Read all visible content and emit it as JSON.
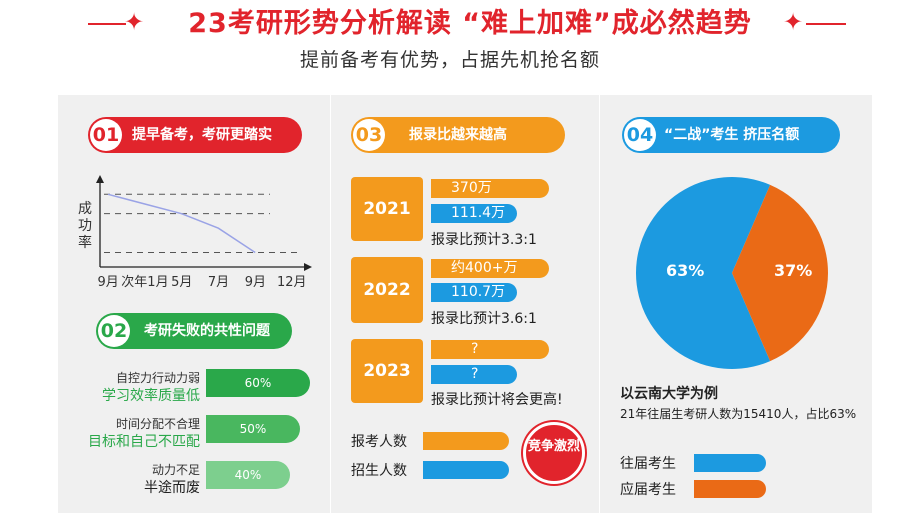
{
  "header": {
    "title": "23考研形势分析解读 “难上加难”成必然趋势",
    "subtitle": "提前备考有优势，占据先机抢名额"
  },
  "section1": {
    "num": "01",
    "title": "提早备考，考研更踏实",
    "chart_data": {
      "type": "line",
      "ylabel": "成功率",
      "xlabel": "",
      "x": [
        "9月",
        "次年1月",
        "5月",
        "7月",
        "9月",
        "12月"
      ],
      "series": [
        {
          "values": [
            3.0,
            2.6,
            2.2,
            1.6,
            0.6,
            null
          ]
        }
      ],
      "ylim": [
        0,
        3.3
      ],
      "grid": "dashed horizontal guides at 3 levels"
    }
  },
  "section2": {
    "num": "02",
    "title": "考研失败的共性问题",
    "factors": [
      {
        "label": "自控力行动力弱",
        "sublabel": "学习效率质量低",
        "value": "60%"
      },
      {
        "label": "时间分配不合理",
        "sublabel": "目标和自己不匹配",
        "value": "50%"
      },
      {
        "label": "动力不足",
        "sublabel": "半途而废",
        "value": "40%"
      }
    ]
  },
  "section3": {
    "num": "03",
    "title": "报录比越来越高",
    "years": [
      {
        "year": "2021",
        "applicants": "370万",
        "admitted": "111.4万",
        "ratio": "报录比预计3.3:1"
      },
      {
        "year": "2022",
        "applicants": "约400+万",
        "admitted": "110.7万",
        "ratio": "报录比预计3.6:1"
      },
      {
        "year": "2023",
        "applicants": "?",
        "admitted": "?",
        "ratio": "报录比预计将会更高!"
      }
    ],
    "legend": {
      "applicants": "报考人数",
      "admitted": "招生人数"
    },
    "stamp": "竞争激烈"
  },
  "section4": {
    "num": "04",
    "title": "“二战”考生 挤压名额",
    "chart_data": {
      "type": "pie",
      "slices": [
        {
          "label": "往届考生",
          "value": 63,
          "display": "63%",
          "color": "#1c9ae0"
        },
        {
          "label": "应届考生",
          "value": 37,
          "display": "37%",
          "color": "#ea6a16"
        }
      ]
    },
    "example_title": "以云南大学为例",
    "example_text": "21年往届生考研人数为15410人，占比63%",
    "legend": {
      "prev": "往届考生",
      "fresh": "应届考生"
    }
  },
  "colors": {
    "red": "#e1242c",
    "green": "#2aa84a",
    "orange": "#f39a1d",
    "blue": "#1c9ae0",
    "pie_orange": "#ea6a16"
  }
}
